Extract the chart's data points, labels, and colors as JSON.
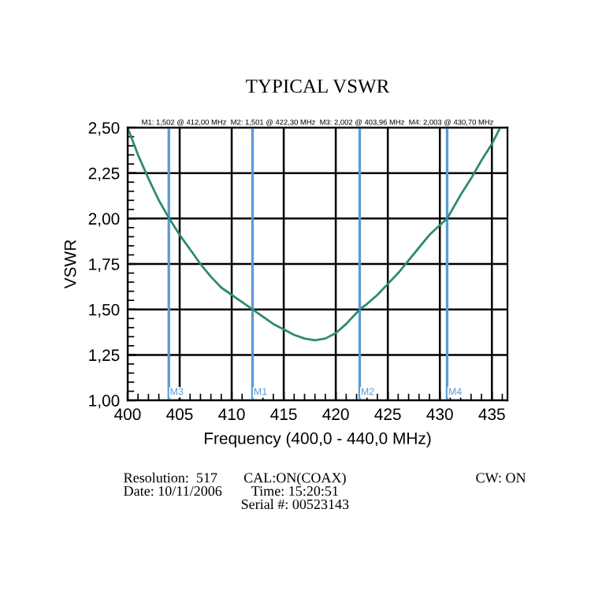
{
  "chart_data": {
    "type": "line",
    "title": "TYPICAL VSWR",
    "xlabel": "Frequency (400,0 - 440,0 MHz)",
    "ylabel": "VSWR",
    "x": [
      400,
      401,
      402,
      403,
      404,
      405,
      406,
      407,
      408,
      409,
      410,
      411,
      412,
      413,
      414,
      415,
      416,
      417,
      418,
      419,
      420,
      421,
      422.3,
      423,
      424,
      425,
      426,
      427,
      428,
      429,
      430.7,
      432,
      433,
      434,
      435,
      435.8
    ],
    "series": [
      {
        "color": "#2e8b6e",
        "values": [
          2.5,
          2.35,
          2.22,
          2.1,
          2.0,
          1.91,
          1.83,
          1.75,
          1.68,
          1.62,
          1.58,
          1.54,
          1.5,
          1.46,
          1.42,
          1.39,
          1.36,
          1.34,
          1.33,
          1.34,
          1.37,
          1.42,
          1.5,
          1.53,
          1.58,
          1.64,
          1.7,
          1.77,
          1.84,
          1.91,
          2.0,
          2.13,
          2.22,
          2.32,
          2.41,
          2.5
        ]
      }
    ],
    "xlim": [
      400,
      436.5
    ],
    "ylim": [
      1.0,
      2.5
    ],
    "xticks": [
      400,
      405,
      410,
      415,
      420,
      425,
      430,
      435
    ],
    "yticks": [
      {
        "value": 1.0,
        "label": "1,00"
      },
      {
        "value": 1.25,
        "label": "1,25"
      },
      {
        "value": 1.5,
        "label": "1,50"
      },
      {
        "value": 1.75,
        "label": "1,75"
      },
      {
        "value": 2.0,
        "label": "2,00"
      },
      {
        "value": 2.25,
        "label": "2,25"
      },
      {
        "value": 2.5,
        "label": "2,50"
      }
    ],
    "grid": true,
    "marker": "none",
    "line_style": "solid",
    "ref_lines": [
      {
        "axis": "x",
        "value": 412.0,
        "label": "M1",
        "color": "#5b9bd5"
      },
      {
        "axis": "x",
        "value": 422.3,
        "label": "M2",
        "color": "#5b9bd5"
      },
      {
        "axis": "x",
        "value": 403.96,
        "label": "M3",
        "color": "#5b9bd5"
      },
      {
        "axis": "x",
        "value": 430.7,
        "label": "M4",
        "color": "#5b9bd5"
      }
    ],
    "annotations": [
      "M1: 1,502 @ 412,00 MHz  M2: 1,501 @ 422,30 MHz  M3: 2,002 @ 403,96 MHz  M4: 2,003 @ 430,70 MHz",
      "Resolution:  517",
      "Date: 10/11/2006",
      "CAL:ON(COAX)",
      "Time: 15:20:51",
      "Serial #: 00523143",
      "CW: ON"
    ]
  }
}
